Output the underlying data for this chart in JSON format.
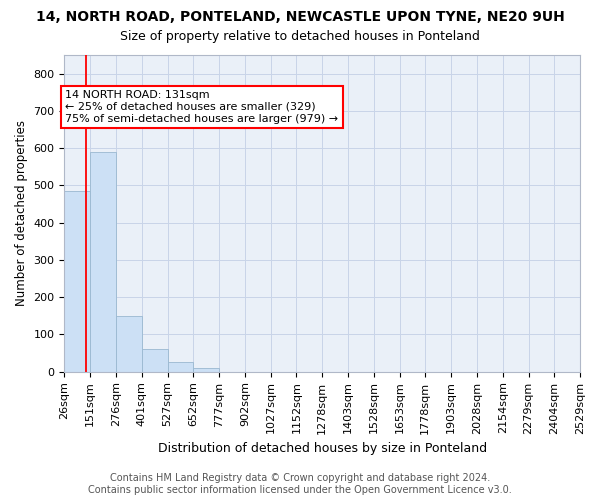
{
  "title": "14, NORTH ROAD, PONTELAND, NEWCASTLE UPON TYNE, NE20 9UH",
  "subtitle": "Size of property relative to detached houses in Ponteland",
  "xlabel": "Distribution of detached houses by size in Ponteland",
  "ylabel": "Number of detached properties",
  "footer_line1": "Contains HM Land Registry data © Crown copyright and database right 2024.",
  "footer_line2": "Contains public sector information licensed under the Open Government Licence v3.0.",
  "bin_edges": [
    26,
    151,
    276,
    401,
    527,
    652,
    777,
    902,
    1027,
    1152,
    1278,
    1403,
    1528,
    1653,
    1778,
    1903,
    2028,
    2154,
    2279,
    2404,
    2529
  ],
  "bar_heights": [
    485,
    590,
    150,
    62,
    25,
    10,
    0,
    0,
    0,
    0,
    0,
    0,
    0,
    0,
    0,
    0,
    0,
    0,
    0,
    0
  ],
  "bar_color": "#cce0f5",
  "bar_edge_color": "#9ab8d0",
  "grid_color": "#c8d4e8",
  "background_color": "#eaf0f8",
  "vline_x": 131,
  "vline_color": "red",
  "annotation_text": "14 NORTH ROAD: 131sqm\n← 25% of detached houses are smaller (329)\n75% of semi-detached houses are larger (979) →",
  "annotation_box_facecolor": "white",
  "annotation_box_edgecolor": "red",
  "ylim": [
    0,
    850
  ],
  "yticks": [
    0,
    100,
    200,
    300,
    400,
    500,
    600,
    700,
    800
  ],
  "tick_label_fontsize": 8,
  "title_fontsize": 10,
  "subtitle_fontsize": 9,
  "xlabel_fontsize": 9,
  "ylabel_fontsize": 8.5,
  "annotation_fontsize": 8,
  "footer_fontsize": 7
}
